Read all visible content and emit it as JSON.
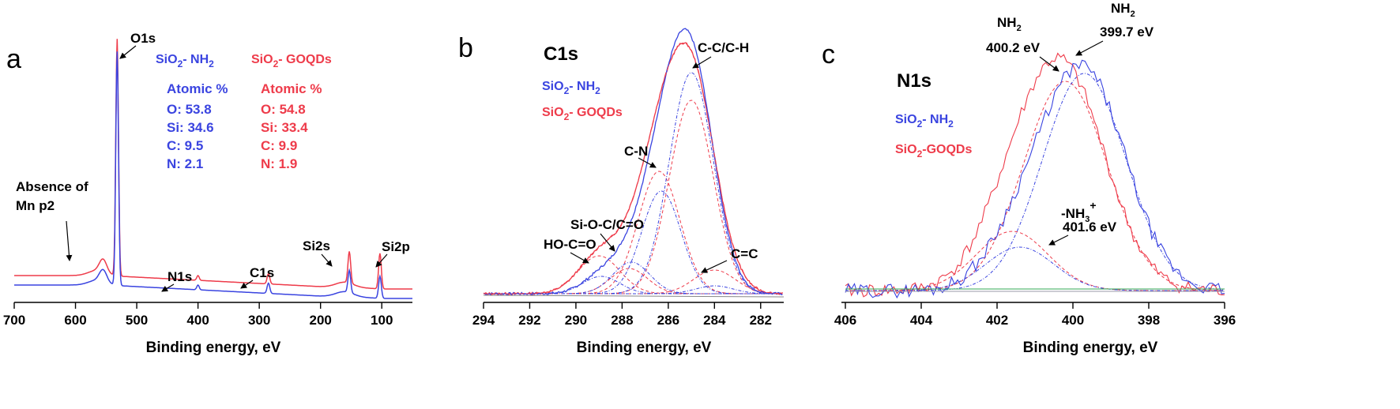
{
  "colors": {
    "blue": "#3a44e0",
    "red": "#ee3b4a",
    "green": "#33aa55"
  },
  "chart_data": [
    {
      "panel": "a",
      "type": "line",
      "xlabel": "Binding energy, eV",
      "xlim": [
        700,
        50
      ],
      "xticks": [
        700,
        600,
        500,
        400,
        300,
        200,
        100
      ],
      "legend": [
        {
          "name_main": "SiO",
          "name_sub": "2",
          "name_rest": "- NH",
          "name_sub2": "2",
          "color": "#3a44e0"
        },
        {
          "name_main": "SiO",
          "name_sub": "2",
          "name_rest": "- GOQDs",
          "name_sub2": "",
          "color": "#ee3b4a"
        }
      ],
      "stats": [
        {
          "header": "Atomic %",
          "lines": [
            "O: 53.8",
            "Si: 34.6",
            "C: 9.5",
            "N: 2.1"
          ],
          "color": "#3a44e0"
        },
        {
          "header": "Atomic %",
          "lines": [
            "O: 54.8",
            "Si: 33.4",
            "C: 9.9",
            "N: 1.9"
          ],
          "color": "#ee3b4a"
        }
      ],
      "annotations": [
        {
          "text": "O1s",
          "at_x": 532
        },
        {
          "text": "N1s",
          "at_x": 400
        },
        {
          "text": "C1s",
          "at_x": 285
        },
        {
          "text": "Si2s",
          "at_x": 153
        },
        {
          "text": "Si2p",
          "at_x": 103
        },
        {
          "text": "Absence of",
          "at_x": 640
        },
        {
          "text": "Mn p2",
          "at_x": 640
        }
      ],
      "series": [
        {
          "name": "SiO2- NH2",
          "color": "#3a44e0"
        },
        {
          "name": "SiO2- GOQDs",
          "color": "#ee3b4a"
        }
      ]
    },
    {
      "panel": "b",
      "type": "line",
      "title": "C1s",
      "xlabel": "Binding energy, eV",
      "xlim": [
        294,
        281
      ],
      "xticks": [
        294,
        292,
        290,
        288,
        286,
        284,
        282
      ],
      "legend": [
        {
          "name_main": "SiO",
          "name_sub": "2",
          "name_rest": "- NH",
          "name_sub2": "2",
          "color": "#3a44e0"
        },
        {
          "name_main": "SiO",
          "name_sub": "2",
          "name_rest": "- GOQDs",
          "name_sub2": "",
          "color": "#ee3b4a"
        }
      ],
      "annotations": [
        "C-C/C-H",
        "C-N",
        "Si-O-C/C=O",
        "HO-C=O",
        "C=C"
      ],
      "peaks_eV": {
        "C-C/C-H": 285.0,
        "C-N": 286.3,
        "Si-O-C/C=O": 287.6,
        "HO-C=O": 288.9,
        "C=C": 284.0
      }
    },
    {
      "panel": "c",
      "type": "line",
      "title": "N1s",
      "xlabel": "Binding energy, eV",
      "xlim": [
        406,
        396
      ],
      "xticks": [
        406,
        404,
        402,
        400,
        398,
        396
      ],
      "legend": [
        {
          "name_main": "SiO",
          "name_sub": "2",
          "name_rest": "- NH",
          "name_sub2": "2",
          "color": "#3a44e0"
        },
        {
          "name_main": "SiO",
          "name_sub": "2",
          "name_rest": "-GOQDs",
          "name_sub2": "",
          "color": "#ee3b4a"
        }
      ],
      "annotations": [
        {
          "label": "NH",
          "sub": "2",
          "value": "400.2 eV"
        },
        {
          "label": "NH",
          "sub": "2",
          "value": "399.7 eV"
        },
        {
          "label": "-NH",
          "sub": "3",
          "sup": "+",
          "value": "401.6 eV"
        }
      ]
    }
  ]
}
